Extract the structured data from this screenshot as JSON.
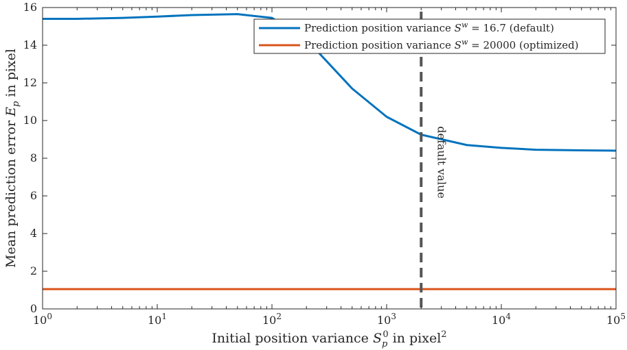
{
  "chart_data": {
    "type": "line",
    "xscale": "log",
    "xlim": [
      1,
      100000
    ],
    "ylim": [
      0,
      16
    ],
    "xlabel": "Initial position variance S_p^0 in pixel^2",
    "ylabel": "Mean prediction error E_p in pixel",
    "x_ticks": [
      1,
      10,
      100,
      1000,
      10000,
      100000
    ],
    "x_tick_labels": [
      {
        "base": "10",
        "exp": "0"
      },
      {
        "base": "10",
        "exp": "1"
      },
      {
        "base": "10",
        "exp": "2"
      },
      {
        "base": "10",
        "exp": "3"
      },
      {
        "base": "10",
        "exp": "4"
      },
      {
        "base": "10",
        "exp": "5"
      }
    ],
    "y_ticks": [
      0,
      2,
      4,
      6,
      8,
      10,
      12,
      14,
      16
    ],
    "y_tick_labels": [
      "0",
      "2",
      "4",
      "6",
      "8",
      "10",
      "12",
      "14",
      "16"
    ],
    "legend_position": "top-right",
    "series": [
      {
        "name": "Prediction position variance S^w = 16.7 (default)",
        "color": "#0072BD",
        "x": [
          1,
          2,
          5,
          10,
          20,
          50,
          100,
          200,
          500,
          1000,
          2000,
          5000,
          10000,
          20000,
          50000,
          100000
        ],
        "y": [
          15.4,
          15.4,
          15.45,
          15.52,
          15.6,
          15.65,
          15.45,
          14.3,
          11.7,
          10.2,
          9.25,
          8.7,
          8.55,
          8.45,
          8.42,
          8.4
        ]
      },
      {
        "name": "Prediction position variance S^w = 20000 (optimized)",
        "color": "#D95319",
        "x": [
          1,
          100000
        ],
        "y": [
          1.05,
          1.05
        ]
      }
    ],
    "reference_line": {
      "x": 2000,
      "label": "default value",
      "color": "#555555"
    }
  }
}
